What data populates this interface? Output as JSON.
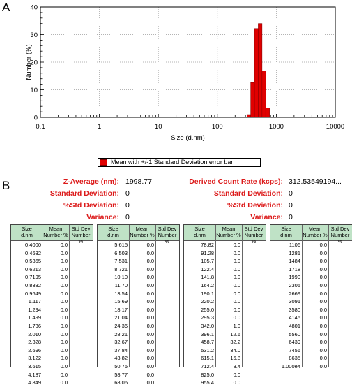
{
  "panel_a_label": "A",
  "panel_b_label": "B",
  "chart_data": {
    "type": "bar",
    "xlabel": "Size (d.nm)",
    "ylabel": "Number (%)",
    "x_scale": "log",
    "xlim": [
      0.1,
      10000
    ],
    "ylim": [
      0,
      40
    ],
    "grid": true,
    "x_tick_labels": [
      "0.1",
      "1",
      "10",
      "100",
      "1000",
      "10000"
    ],
    "y_tick_labels": [
      "0",
      "10",
      "20",
      "30",
      "40"
    ],
    "bins": [
      342.0,
      396.1,
      458.7,
      531.2,
      615.1,
      712.4
    ],
    "values": [
      1.0,
      12.6,
      32.2,
      34.0,
      16.8,
      3.4
    ],
    "color": "#e00000"
  },
  "legend": {
    "text": "Mean with +/-1 Standard Deviation error bar"
  },
  "stats_left": [
    {
      "label": "Z-Average (nm):",
      "value": "1998.77"
    },
    {
      "label": "Standard Deviation:",
      "value": "0"
    },
    {
      "label": "%Std Deviation:",
      "value": "0"
    },
    {
      "label": "Variance:",
      "value": "0"
    }
  ],
  "stats_right": [
    {
      "label": "Derived Count Rate (kcps):",
      "value": "312.53549194..."
    },
    {
      "label": "Standard Deviation:",
      "value": "0"
    },
    {
      "label": "%Std Deviation:",
      "value": "0"
    },
    {
      "label": "Variance:",
      "value": "0"
    }
  ],
  "table_headers": {
    "size": "Size\nd.nm",
    "mean": "Mean\nNumber %",
    "std": "Std Dev\nNumber %"
  },
  "tables": [
    {
      "rows": [
        [
          "0.4000",
          "0.0"
        ],
        [
          "0.4632",
          "0.0"
        ],
        [
          "0.5365",
          "0.0"
        ],
        [
          "0.6213",
          "0.0"
        ],
        [
          "0.7195",
          "0.0"
        ],
        [
          "0.8332",
          "0.0"
        ],
        [
          "0.9649",
          "0.0"
        ],
        [
          "1.117",
          "0.0"
        ],
        [
          "1.294",
          "0.0"
        ],
        [
          "1.499",
          "0.0"
        ],
        [
          "1.736",
          "0.0"
        ],
        [
          "2.010",
          "0.0"
        ],
        [
          "2.328",
          "0.0"
        ],
        [
          "2.696",
          "0.0"
        ],
        [
          "3.122",
          "0.0"
        ],
        [
          "3.615",
          "0.0"
        ],
        [
          "4.187",
          "0.0"
        ],
        [
          "4.849",
          "0.0"
        ]
      ]
    },
    {
      "rows": [
        [
          "5.615",
          "0.0"
        ],
        [
          "6.503",
          "0.0"
        ],
        [
          "7.531",
          "0.0"
        ],
        [
          "8.721",
          "0.0"
        ],
        [
          "10.10",
          "0.0"
        ],
        [
          "11.70",
          "0.0"
        ],
        [
          "13.54",
          "0.0"
        ],
        [
          "15.69",
          "0.0"
        ],
        [
          "18.17",
          "0.0"
        ],
        [
          "21.04",
          "0.0"
        ],
        [
          "24.36",
          "0.0"
        ],
        [
          "28.21",
          "0.0"
        ],
        [
          "32.67",
          "0.0"
        ],
        [
          "37.84",
          "0.0"
        ],
        [
          "43.82",
          "0.0"
        ],
        [
          "50.75",
          "0.0"
        ],
        [
          "58.77",
          "0.0"
        ],
        [
          "68.06",
          "0.0"
        ]
      ]
    },
    {
      "rows": [
        [
          "78.82",
          "0.0"
        ],
        [
          "91.28",
          "0.0"
        ],
        [
          "105.7",
          "0.0"
        ],
        [
          "122.4",
          "0.0"
        ],
        [
          "141.8",
          "0.0"
        ],
        [
          "164.2",
          "0.0"
        ],
        [
          "190.1",
          "0.0"
        ],
        [
          "220.2",
          "0.0"
        ],
        [
          "255.0",
          "0.0"
        ],
        [
          "295.3",
          "0.0"
        ],
        [
          "342.0",
          "1.0"
        ],
        [
          "396.1",
          "12.6"
        ],
        [
          "458.7",
          "32.2"
        ],
        [
          "531.2",
          "34.0"
        ],
        [
          "615.1",
          "16.8"
        ],
        [
          "712.4",
          "3.4"
        ],
        [
          "825.0",
          "0.0"
        ],
        [
          "955.4",
          "0.0"
        ]
      ]
    },
    {
      "rows": [
        [
          "1106",
          "0.0"
        ],
        [
          "1281",
          "0.0"
        ],
        [
          "1484",
          "0.0"
        ],
        [
          "1718",
          "0.0"
        ],
        [
          "1990",
          "0.0"
        ],
        [
          "2305",
          "0.0"
        ],
        [
          "2669",
          "0.0"
        ],
        [
          "3091",
          "0.0"
        ],
        [
          "3580",
          "0.0"
        ],
        [
          "4145",
          "0.0"
        ],
        [
          "4801",
          "0.0"
        ],
        [
          "5560",
          "0.0"
        ],
        [
          "6439",
          "0.0"
        ],
        [
          "7456",
          "0.0"
        ],
        [
          "8635",
          "0.0"
        ],
        [
          "1.000e4",
          "0.0"
        ]
      ]
    }
  ]
}
